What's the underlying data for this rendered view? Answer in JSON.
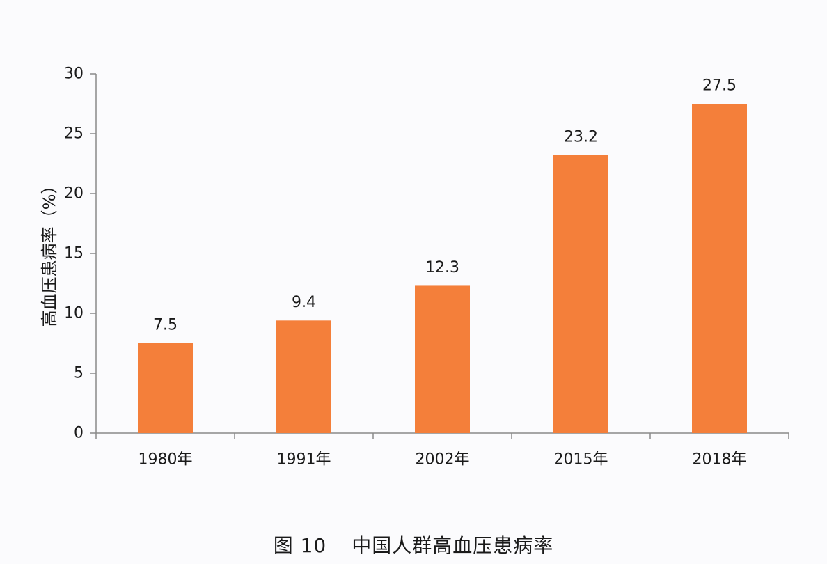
{
  "chart_data": {
    "type": "bar",
    "title": "图 10　中国人群高血压患病率",
    "figure_number": "图 10",
    "figure_title": "中国人群高血压患病率",
    "xlabel": "",
    "ylabel": "高血压患病率（%）",
    "categories": [
      "1980年",
      "1991年",
      "2002年",
      "2015年",
      "2018年"
    ],
    "values": [
      7.5,
      9.4,
      12.3,
      23.2,
      27.5
    ],
    "value_labels": [
      "7.5",
      "9.4",
      "12.3",
      "23.2",
      "27.5"
    ],
    "ylim": [
      0,
      30
    ],
    "yticks": [
      0,
      5,
      10,
      15,
      20,
      25,
      30
    ],
    "grid": false,
    "legend": null,
    "bar_color": "#F47F3A"
  },
  "caption": {
    "number": "图 10",
    "text": "中国人群高血压患病率"
  }
}
